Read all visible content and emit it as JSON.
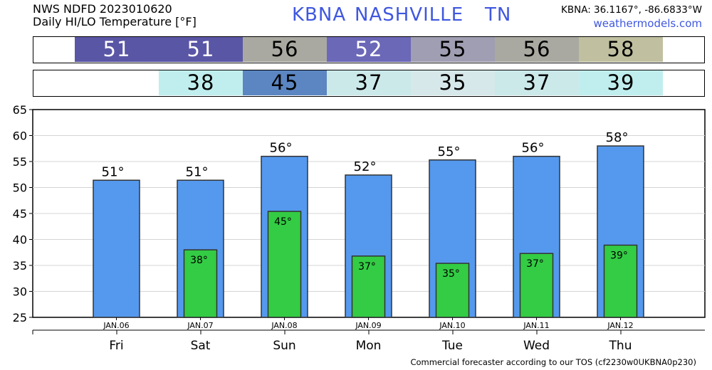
{
  "header": {
    "line1": "NWS NDFD 2023010620",
    "line2": "Daily HI/LO Temperature [°F]",
    "station_id": "KBNA",
    "station_name": "NASHVILLE",
    "state": "TN",
    "coords": "KBNA: 36.1167°, -86.6833°W",
    "site": "weathermodels.com"
  },
  "hi_strip": [
    {
      "text": "51",
      "color": "#5a56a6",
      "fg": "#ffffff"
    },
    {
      "text": "51",
      "color": "#5a56a6",
      "fg": "#ffffff"
    },
    {
      "text": "56",
      "color": "#a9a9a1",
      "fg": "#000000"
    },
    {
      "text": "52",
      "color": "#6c68b8",
      "fg": "#ffffff"
    },
    {
      "text": "55",
      "color": "#a09eb2",
      "fg": "#000000"
    },
    {
      "text": "56",
      "color": "#a9a9a1",
      "fg": "#000000"
    },
    {
      "text": "58",
      "color": "#c0c0a0",
      "fg": "#000000"
    }
  ],
  "lo_strip": [
    {
      "text": "",
      "color": "#ffffff",
      "fg": "#000000"
    },
    {
      "text": "38",
      "color": "#c0eeee",
      "fg": "#000000"
    },
    {
      "text": "45",
      "color": "#5b86c2",
      "fg": "#000000"
    },
    {
      "text": "37",
      "color": "#cce9ea",
      "fg": "#000000"
    },
    {
      "text": "35",
      "color": "#d6e8ea",
      "fg": "#000000"
    },
    {
      "text": "37",
      "color": "#cce9ea",
      "fg": "#000000"
    },
    {
      "text": "39",
      "color": "#c0eeee",
      "fg": "#000000"
    }
  ],
  "chart_data": {
    "type": "bar",
    "categories": [
      "JAN.06",
      "JAN.07",
      "JAN.08",
      "JAN.09",
      "JAN.10",
      "JAN.11",
      "JAN.12"
    ],
    "day_labels": [
      "Fri",
      "Sat",
      "Sun",
      "Mon",
      "Tue",
      "Wed",
      "Thu"
    ],
    "series": [
      {
        "values": [
          51.4,
          51.4,
          56,
          52.4,
          55.3,
          56,
          58
        ],
        "labels": [
          "51°",
          "51°",
          "56°",
          "52°",
          "55°",
          "56°",
          "58°"
        ],
        "color": "#5599ee"
      },
      {
        "values": [
          null,
          38,
          45.4,
          36.8,
          35.4,
          37.3,
          38.9
        ],
        "labels": [
          "",
          "38°",
          "45°",
          "37°",
          "35°",
          "37°",
          "39°"
        ],
        "color": "#33cc44"
      }
    ],
    "ylim": [
      25,
      65
    ],
    "yticks": [
      "25",
      "30",
      "35",
      "40",
      "45",
      "50",
      "55",
      "60",
      "65"
    ],
    "grid": true
  },
  "footer": "Commercial forecaster according to our TOS (cf2230w0UKBNA0p230)"
}
